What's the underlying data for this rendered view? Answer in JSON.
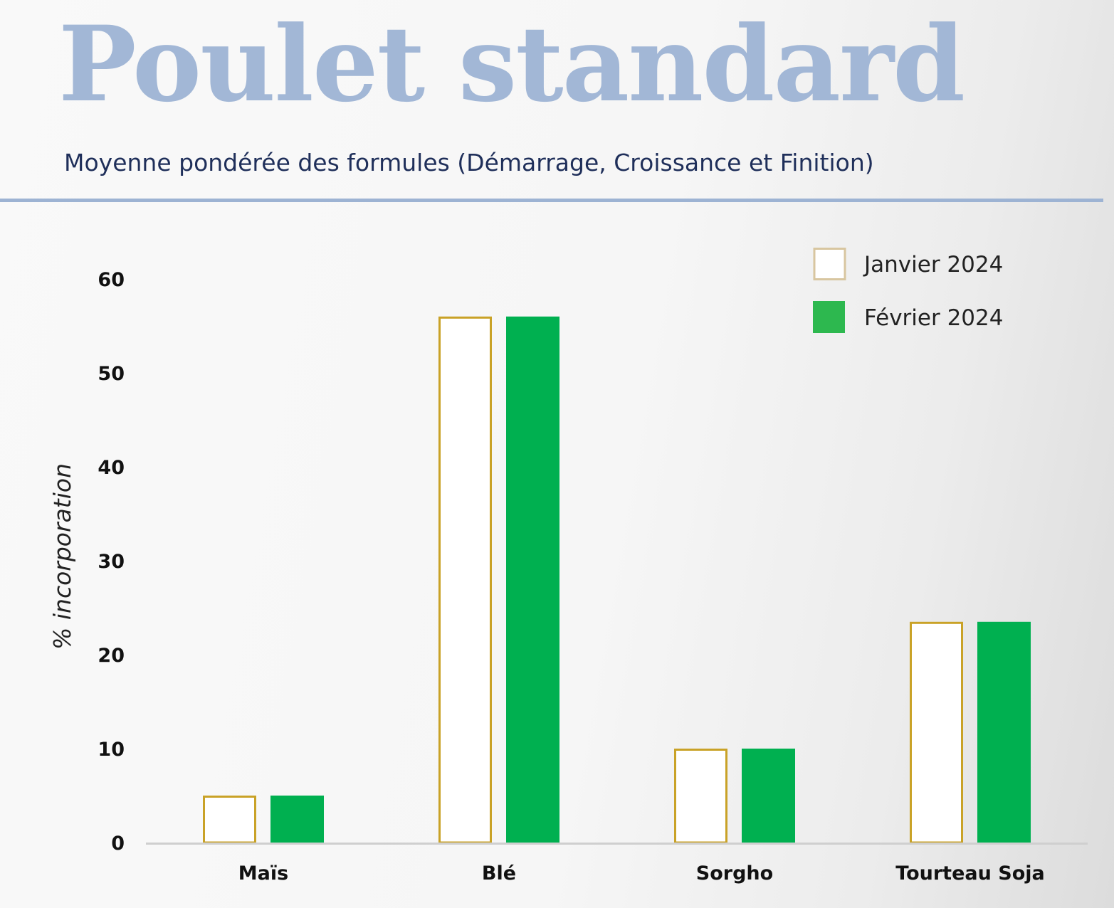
{
  "header": {
    "title": "Poulet standard",
    "subtitle": "Moyenne pondérée des formules (Démarrage, Croissance et Finition)"
  },
  "colors": {
    "title": "#a2b7d6",
    "subtitle": "#1f2f5a",
    "rule": "#9db3d3",
    "janvier_outline": "#c9a227",
    "fevrier_fill": "#00b050",
    "axis_text": "#111111",
    "baseline": "#cfcfcf"
  },
  "chart_data": {
    "type": "bar",
    "title": "Poulet standard",
    "subtitle": "Moyenne pondérée des formules (Démarrage, Croissance et Finition)",
    "xlabel": "",
    "ylabel": "% incorporation",
    "categories": [
      "Maïs",
      "Blé",
      "Sorgho",
      "Tourteau Soja"
    ],
    "series": [
      {
        "name": "Janvier 2024",
        "values": [
          5,
          56,
          10,
          23.5
        ],
        "style": "outline"
      },
      {
        "name": "Février 2024",
        "values": [
          5,
          56,
          10,
          23.5
        ],
        "style": "filled"
      }
    ],
    "ylim": [
      0,
      60
    ],
    "yticks": [
      0,
      10,
      20,
      30,
      40,
      50,
      60
    ],
    "grid": false,
    "legend_position": "top-right"
  }
}
